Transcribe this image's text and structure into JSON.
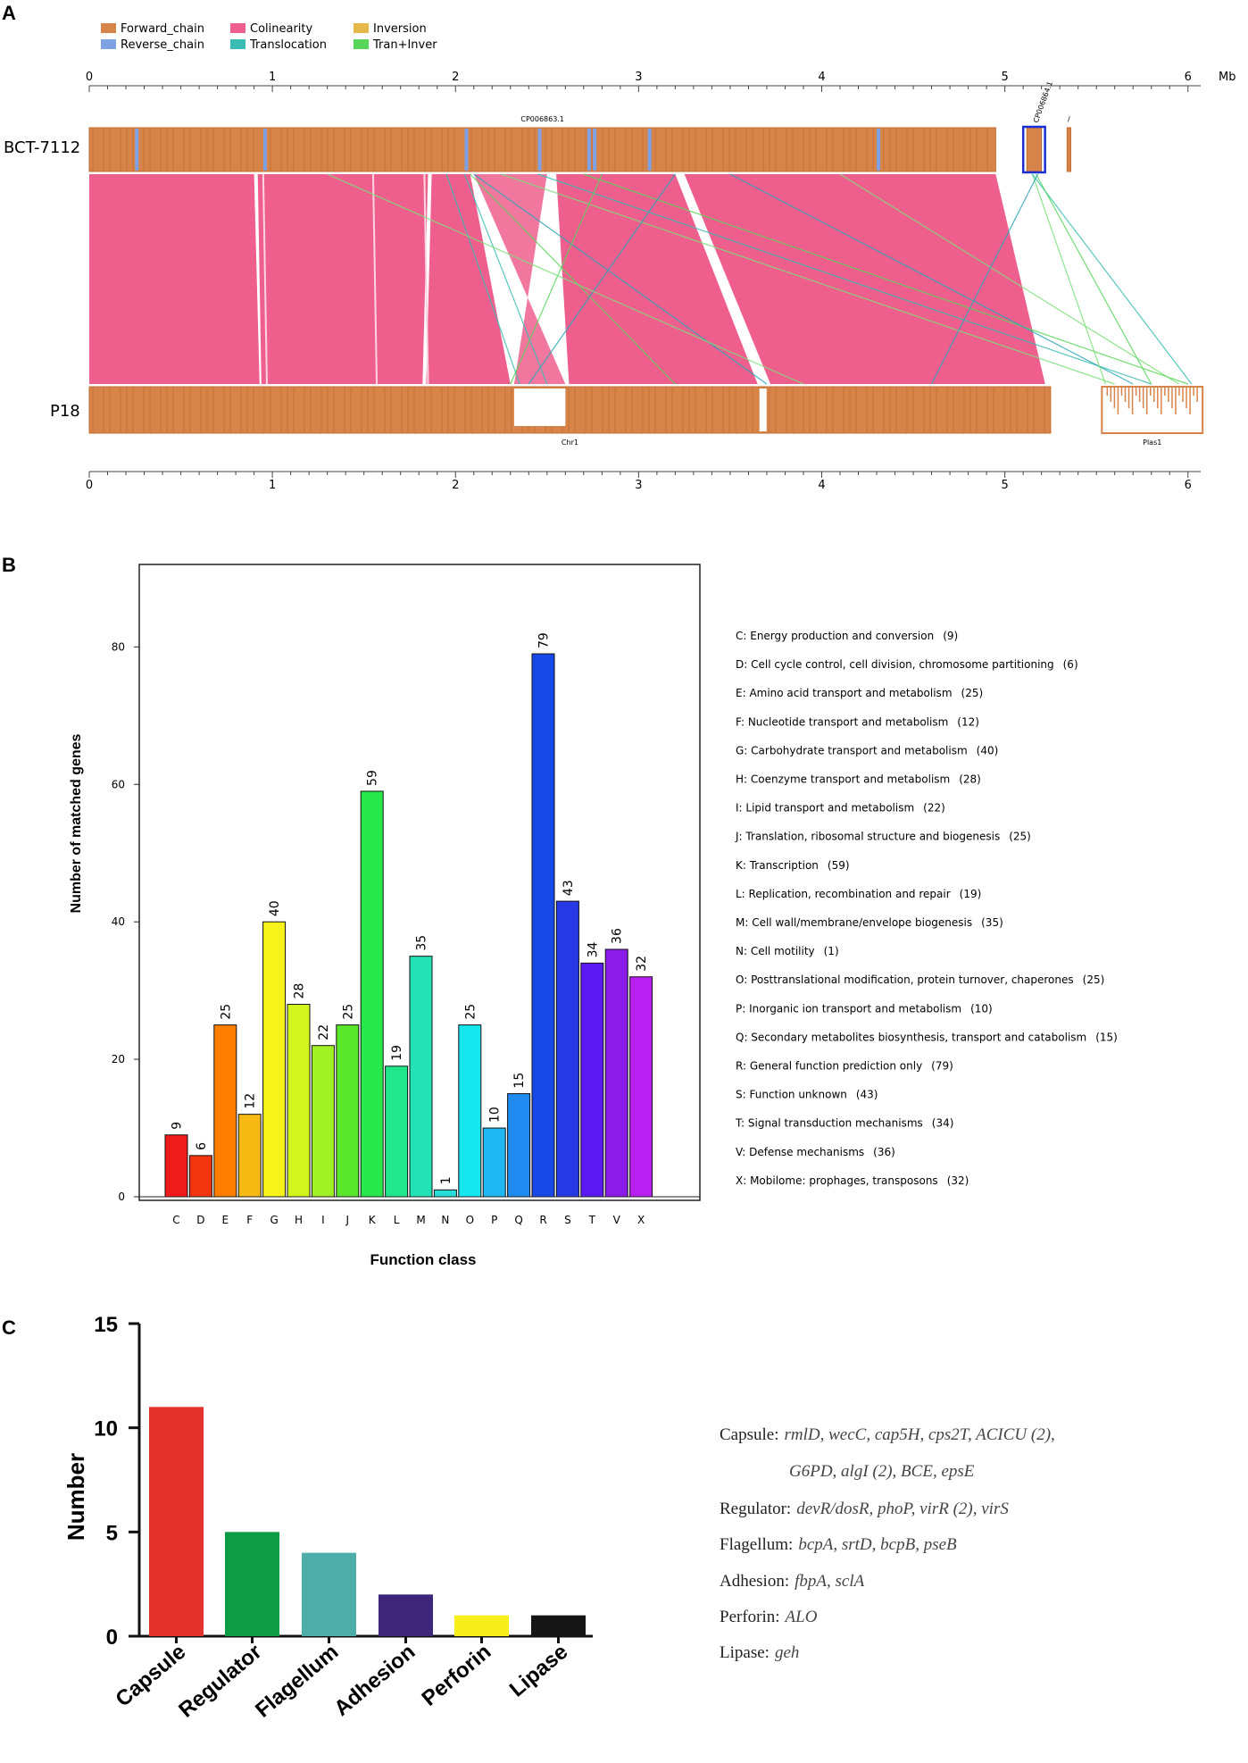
{
  "chart_data": [
    {
      "type": "synteny",
      "panel_label": "A",
      "legend": [
        {
          "label": "Forward_chain",
          "color": "#d7844a"
        },
        {
          "label": "Reverse_chain",
          "color": "#7ea1e3"
        },
        {
          "label": "Colinearity",
          "color": "#ef5f8e"
        },
        {
          "label": "Translocation",
          "color": "#3bbdb3"
        },
        {
          "label": "Inversion",
          "color": "#e6b84a"
        },
        {
          "label": "Tran+Inver",
          "color": "#58d65a"
        }
      ],
      "axis_unit": "Mb",
      "axis_ticks": [
        0,
        1,
        2,
        3,
        4,
        5,
        6
      ],
      "axis_range": [
        0,
        6.05
      ],
      "genomes": [
        {
          "name": "BCT-7112",
          "contigs": [
            {
              "label": "CP006863.1",
              "start": 0,
              "end": 4.95
            },
            {
              "label": "CP006864.1",
              "start": 5.12,
              "end": 5.2
            },
            {
              "label": "/",
              "start": 5.34,
              "end": 5.36
            }
          ]
        },
        {
          "name": "P18",
          "contigs": [
            {
              "label": "Chr1",
              "start": 0,
              "end": 5.25
            },
            {
              "label": "Plas1",
              "start": 5.53,
              "end": 6.08
            }
          ]
        }
      ],
      "colinear_blocks": [
        {
          "top": [
            0.0,
            0.9
          ],
          "bottom": [
            0.0,
            0.93
          ]
        },
        {
          "top": [
            0.92,
            1.85
          ],
          "bottom": [
            0.94,
            1.82
          ]
        },
        {
          "top": [
            1.87,
            2.08
          ],
          "bottom": [
            1.84,
            2.3
          ]
        },
        {
          "top": [
            2.55,
            3.2
          ],
          "bottom": [
            2.62,
            3.65
          ]
        },
        {
          "top": [
            3.25,
            4.95
          ],
          "bottom": [
            3.72,
            5.22
          ]
        }
      ],
      "inverted_blocks": [
        {
          "top": [
            2.1,
            2.5
          ],
          "bottom": [
            2.32,
            2.6
          ]
        }
      ],
      "translocations": [
        {
          "top": 2.05,
          "bottom": 2.5
        },
        {
          "top": 2.08,
          "bottom": 3.2
        },
        {
          "top": 2.1,
          "bottom": 3.7
        },
        {
          "top": 2.25,
          "bottom": 5.6
        },
        {
          "top": 2.45,
          "bottom": 5.8
        },
        {
          "top": 2.7,
          "bottom": 6.0
        },
        {
          "top": 3.5,
          "bottom": 5.7
        },
        {
          "top": 4.1,
          "bottom": 5.95
        },
        {
          "top": 1.95,
          "bottom": 2.35
        },
        {
          "top": 2.8,
          "bottom": 2.3
        },
        {
          "top": 3.2,
          "bottom": 2.4
        },
        {
          "top": 5.15,
          "bottom": 5.55
        },
        {
          "top": 5.15,
          "bottom": 6.02
        },
        {
          "top": 5.17,
          "bottom": 5.8
        },
        {
          "top": 5.18,
          "bottom": 4.6
        },
        {
          "top": 1.3,
          "bottom": 3.9
        }
      ],
      "reverse_marks_top": [
        0.25,
        0.95,
        2.05,
        2.45,
        2.72,
        2.75,
        3.05,
        4.3
      ]
    },
    {
      "type": "bar",
      "panel_label": "B",
      "xlabel": "Function class",
      "ylabel": "Number of matched genes",
      "ylim": [
        0,
        92
      ],
      "yticks": [
        0,
        20,
        40,
        60,
        80
      ],
      "categories": [
        "C",
        "D",
        "E",
        "F",
        "G",
        "H",
        "I",
        "J",
        "K",
        "L",
        "M",
        "N",
        "O",
        "P",
        "Q",
        "R",
        "S",
        "T",
        "V",
        "X"
      ],
      "values": [
        9,
        6,
        25,
        12,
        40,
        28,
        22,
        25,
        59,
        19,
        35,
        1,
        25,
        10,
        15,
        79,
        43,
        34,
        36,
        32
      ],
      "colors": [
        "#ee1b1b",
        "#f2350e",
        "#ff7e00",
        "#f7b914",
        "#f7f219",
        "#d2f51d",
        "#a1f224",
        "#5ae62a",
        "#27e84a",
        "#22e68c",
        "#23e2b5",
        "#27ddd6",
        "#16e6ee",
        "#1eb7f2",
        "#1f8bf0",
        "#1849e8",
        "#2639e4",
        "#5b19f2",
        "#8b1be8",
        "#b81ff0"
      ],
      "legend_items": [
        {
          "code": "C",
          "text": "C: Energy production and conversion",
          "count": "(9)"
        },
        {
          "code": "D",
          "text": "D: Cell cycle control, cell division, chromosome partitioning",
          "count": "(6)"
        },
        {
          "code": "E",
          "text": "E: Amino acid transport and metabolism",
          "count": "(25)"
        },
        {
          "code": "F",
          "text": "F: Nucleotide transport and metabolism",
          "count": "(12)"
        },
        {
          "code": "G",
          "text": "G: Carbohydrate transport and metabolism",
          "count": "(40)"
        },
        {
          "code": "H",
          "text": "H: Coenzyme transport and metabolism",
          "count": "(28)"
        },
        {
          "code": "I",
          "text": "I: Lipid transport and metabolism",
          "count": "(22)"
        },
        {
          "code": "J",
          "text": "J: Translation, ribosomal structure and biogenesis",
          "count": "(25)"
        },
        {
          "code": "K",
          "text": "K: Transcription",
          "count": "(59)"
        },
        {
          "code": "L",
          "text": "L: Replication, recombination and repair",
          "count": "(19)"
        },
        {
          "code": "M",
          "text": "M: Cell wall/membrane/envelope biogenesis",
          "count": "(35)"
        },
        {
          "code": "N",
          "text": "N: Cell motility",
          "count": "(1)"
        },
        {
          "code": "O",
          "text": "O: Posttranslational modification, protein turnover, chaperones",
          "count": "(25)"
        },
        {
          "code": "P",
          "text": "P: Inorganic ion transport and metabolism",
          "count": "(10)"
        },
        {
          "code": "Q",
          "text": "Q: Secondary metabolites biosynthesis, transport and catabolism",
          "count": "(15)"
        },
        {
          "code": "R",
          "text": "R: General function prediction only",
          "count": "(79)"
        },
        {
          "code": "S",
          "text": "S: Function unknown",
          "count": "(43)"
        },
        {
          "code": "T",
          "text": "T: Signal transduction mechanisms",
          "count": "(34)"
        },
        {
          "code": "V",
          "text": "V: Defense mechanisms",
          "count": "(36)"
        },
        {
          "code": "X",
          "text": "X: Mobilome: prophages, transposons",
          "count": "(32)"
        }
      ]
    },
    {
      "type": "bar",
      "panel_label": "C",
      "ylabel": "Number",
      "ylim": [
        0,
        15
      ],
      "yticks": [
        0,
        5,
        10,
        15
      ],
      "categories": [
        "Capsule",
        "Regulator",
        "Flagellum",
        "Adhesion",
        "Perforin",
        "Lipase"
      ],
      "values": [
        11,
        5,
        4,
        2,
        1,
        1
      ],
      "colors": [
        "#e3312b",
        "#0d9b46",
        "#4fada9",
        "#3d2679",
        "#f7ee1b",
        "#151515"
      ],
      "gene_lists": [
        {
          "label": "Capsule:",
          "genes": "rmlD, wecC, cap5H, cps2T, ACICU (2),",
          "genes_cont": "G6PD, algI (2), BCE, epsE"
        },
        {
          "label": "Regulator:",
          "genes": "devR/dosR, phoP, virR (2), virS"
        },
        {
          "label": "Flagellum:",
          "genes": "bcpA, srtD, bcpB, pseB"
        },
        {
          "label": "Adhesion:",
          "genes": "fbpA, sclA"
        },
        {
          "label": "Perforin:",
          "genes": "ALO"
        },
        {
          "label": "Lipase:",
          "genes": "geh"
        }
      ]
    }
  ]
}
